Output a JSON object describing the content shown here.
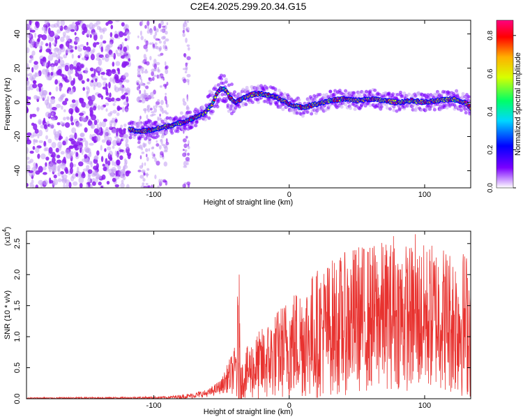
{
  "figure_title": "C2E4.2025.299.20.34.G15",
  "colors": {
    "snr_line": "#e8322f",
    "bg": "#ffffff",
    "colormap": [
      "#ffffff",
      "#7b00ff",
      "#0000ff",
      "#00d7ff",
      "#00ff66",
      "#d8ff00",
      "#ffb000",
      "#ff0000",
      "#ff007f"
    ],
    "noise_purple": "#8b1cf0",
    "noise_light": "#c7a4f4"
  },
  "chart_data": [
    {
      "name": "spectrogram",
      "type": "heatmap",
      "xlabel": "Height of straight line (km)",
      "ylabel": "Frequency (Hz)",
      "xlim": [
        -194,
        134
      ],
      "ylim": [
        -50,
        48
      ],
      "x_ticks": [
        -100,
        0,
        100
      ],
      "y_ticks": [
        -40,
        -20,
        0,
        20,
        40
      ],
      "x_tick_labels": [
        "-100",
        "0",
        "100"
      ],
      "y_tick_labels": [
        "-40",
        "-20",
        "0",
        "20",
        "40"
      ],
      "ridge": {
        "x": [
          -118,
          -110,
          -100,
          -90,
          -80,
          -70,
          -62,
          -57,
          -53,
          -50,
          -47,
          -44,
          -40,
          -35,
          -30,
          -25,
          -20,
          -15,
          -10,
          -5,
          0,
          5,
          10,
          20,
          30,
          40,
          50,
          60,
          70,
          80,
          90,
          100,
          110,
          120,
          130,
          134
        ],
        "y": [
          -16,
          -17,
          -16,
          -14,
          -12,
          -9,
          -6,
          -1,
          6,
          8,
          7,
          3,
          0,
          2,
          4,
          5,
          5,
          4,
          3,
          1,
          -1,
          -2,
          -3,
          -1,
          1,
          2,
          1,
          2,
          1,
          0,
          1,
          0,
          1,
          2,
          0,
          -3
        ],
        "peak_amplitude": 0.88
      },
      "noise_region_x": [
        -194,
        -118
      ],
      "colorbar": {
        "label": "Normalized spectral amplitude",
        "range": [
          0.0,
          0.88
        ],
        "ticks": [
          0.0,
          0.2,
          0.4,
          0.6,
          0.8
        ],
        "tick_labels": [
          "0.0",
          "0.2",
          "0.4",
          "0.6",
          "0.8"
        ]
      }
    },
    {
      "name": "snr",
      "type": "line",
      "xlabel": "Height of straight line (km)",
      "ylabel": "SNR (10 * v/v)",
      "y_multiplier_label": "(x10",
      "y_multiplier_exp": "4",
      "xlim": [
        -194,
        134
      ],
      "ylim": [
        0.0,
        2.7
      ],
      "x_ticks": [
        -100,
        0,
        100
      ],
      "y_ticks": [
        0.0,
        0.5,
        1.0,
        1.5,
        2.0,
        2.5
      ],
      "x_tick_labels": [
        "-100",
        "0",
        "100"
      ],
      "y_tick_labels": [
        "0.0",
        "0.5",
        "1.0",
        "1.5",
        "2.0",
        "2.5"
      ],
      "envelope": {
        "x": [
          -194,
          -120,
          -90,
          -75,
          -60,
          -50,
          -45,
          -40,
          -38,
          -35,
          -30,
          -20,
          -10,
          0,
          10,
          20,
          30,
          40,
          50,
          60,
          70,
          80,
          90,
          100,
          110,
          120,
          134
        ],
        "mean": [
          0.01,
          0.015,
          0.02,
          0.04,
          0.09,
          0.2,
          0.35,
          0.45,
          0.7,
          0.3,
          0.45,
          0.55,
          0.7,
          0.85,
          0.95,
          1.05,
          1.15,
          1.2,
          1.3,
          1.3,
          1.35,
          1.35,
          1.3,
          1.3,
          1.35,
          1.25,
          1.2
        ],
        "amplitude": [
          0.01,
          0.015,
          0.02,
          0.04,
          0.06,
          0.12,
          0.25,
          0.4,
          1.1,
          0.3,
          0.45,
          0.6,
          0.7,
          0.85,
          0.95,
          1.05,
          1.1,
          1.15,
          1.2,
          1.2,
          1.2,
          1.2,
          1.2,
          1.2,
          1.2,
          1.2,
          1.2
        ]
      },
      "notable_peaks": [
        {
          "x": -37,
          "y": 2.0
        },
        {
          "x": 93,
          "y": 2.65
        },
        {
          "x": 77,
          "y": 2.62
        }
      ]
    }
  ]
}
